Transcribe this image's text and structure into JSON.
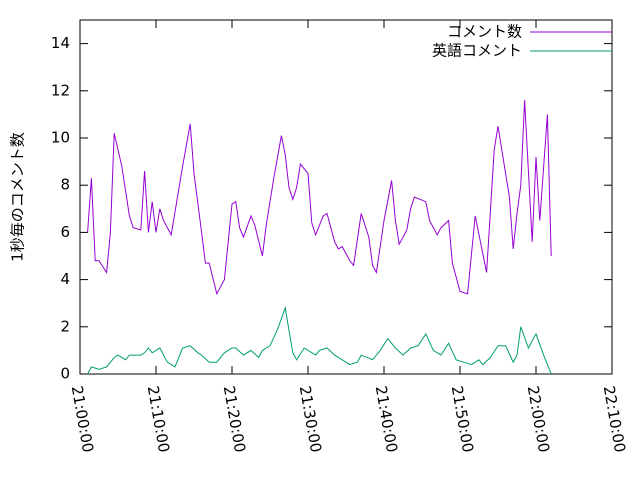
{
  "chart_data": {
    "type": "line",
    "ylabel": "1秒毎のコメント数",
    "xlim": [
      "21:00:00",
      "22:10:00"
    ],
    "xticks": [
      "21:00:00",
      "21:10:00",
      "21:20:00",
      "21:30:00",
      "21:40:00",
      "21:50:00",
      "22:00:00",
      "22:10:00"
    ],
    "ylim": [
      0,
      15
    ],
    "yticks": [
      0,
      2,
      4,
      6,
      8,
      10,
      12,
      14
    ],
    "grid": false,
    "legend": "top-right",
    "series": [
      {
        "name": "コメント数",
        "color": "#9400d3",
        "x": [
          "21:01:00",
          "21:01:30",
          "21:02:00",
          "21:02:30",
          "21:03:30",
          "21:04:00",
          "21:04:30",
          "21:05:30",
          "21:06:30",
          "21:07:00",
          "21:08:00",
          "21:08:30",
          "21:09:00",
          "21:09:30",
          "21:10:00",
          "21:10:30",
          "21:11:00",
          "21:12:00",
          "21:13:30",
          "21:14:30",
          "21:15:00",
          "21:16:00",
          "21:16:30",
          "21:17:00",
          "21:18:00",
          "21:19:00",
          "21:20:00",
          "21:20:30",
          "21:21:00",
          "21:21:30",
          "21:22:30",
          "21:23:00",
          "21:24:00",
          "21:24:30",
          "21:25:30",
          "21:26:30",
          "21:27:00",
          "21:27:30",
          "21:28:00",
          "21:28:30",
          "21:29:00",
          "21:30:00",
          "21:30:30",
          "21:31:00",
          "21:32:00",
          "21:32:30",
          "21:33:30",
          "21:34:00",
          "21:34:30",
          "21:35:30",
          "21:36:00",
          "21:37:00",
          "21:38:00",
          "21:38:30",
          "21:39:00",
          "21:40:00",
          "21:41:00",
          "21:41:30",
          "21:42:00",
          "21:43:00",
          "21:43:30",
          "21:44:00",
          "21:45:30",
          "21:46:00",
          "21:47:00",
          "21:47:30",
          "21:48:30",
          "21:49:00",
          "21:50:00",
          "21:51:00",
          "21:52:00",
          "21:53:00",
          "21:53:30",
          "21:54:30",
          "21:55:00",
          "21:56:00",
          "21:56:30",
          "21:57:00",
          "21:57:30",
          "21:58:00",
          "21:58:30",
          "21:59:30",
          "22:00:00",
          "22:00:30",
          "22:01:30",
          "22:02:00"
        ],
        "values": [
          6.0,
          8.3,
          4.8,
          4.8,
          4.3,
          6.0,
          10.2,
          8.8,
          6.7,
          6.2,
          6.1,
          8.6,
          6.0,
          7.3,
          6.0,
          7.0,
          6.5,
          5.9,
          8.8,
          10.6,
          8.5,
          6.0,
          4.7,
          4.7,
          3.4,
          4.0,
          7.2,
          7.3,
          6.2,
          5.8,
          6.7,
          6.3,
          5.0,
          6.3,
          8.3,
          10.1,
          9.3,
          7.9,
          7.4,
          7.9,
          8.9,
          8.5,
          6.4,
          5.9,
          6.7,
          6.8,
          5.6,
          5.3,
          5.4,
          4.8,
          4.6,
          6.8,
          5.8,
          4.6,
          4.3,
          6.5,
          8.2,
          6.5,
          5.5,
          6.1,
          7.0,
          7.5,
          7.3,
          6.5,
          5.9,
          6.2,
          6.5,
          4.7,
          3.5,
          3.4,
          6.7,
          5.1,
          4.3,
          9.5,
          10.5,
          8.5,
          7.5,
          5.3,
          6.8,
          8.0,
          11.6,
          5.6,
          9.2,
          6.5,
          11.0,
          5.0
        ]
      },
      {
        "name": "英語コメント",
        "color": "#009e73",
        "x": [
          "21:01:00",
          "21:01:30",
          "21:02:30",
          "21:03:30",
          "21:04:30",
          "21:05:00",
          "21:06:00",
          "21:06:30",
          "21:08:00",
          "21:08:30",
          "21:09:00",
          "21:09:30",
          "21:10:30",
          "21:11:30",
          "21:12:30",
          "21:13:30",
          "21:14:30",
          "21:15:30",
          "21:16:00",
          "21:17:00",
          "21:18:00",
          "21:19:00",
          "21:20:00",
          "21:20:30",
          "21:21:30",
          "21:22:30",
          "21:23:30",
          "21:24:00",
          "21:25:00",
          "21:26:00",
          "21:27:00",
          "21:28:00",
          "21:28:30",
          "21:29:30",
          "21:31:00",
          "21:31:30",
          "21:32:30",
          "21:33:30",
          "21:34:30",
          "21:35:30",
          "21:36:30",
          "21:37:00",
          "21:38:30",
          "21:39:30",
          "21:40:30",
          "21:41:30",
          "21:42:30",
          "21:43:30",
          "21:44:30",
          "21:45:30",
          "21:46:30",
          "21:47:30",
          "21:48:30",
          "21:49:30",
          "21:50:30",
          "21:51:30",
          "21:52:30",
          "21:53:00",
          "21:54:00",
          "21:55:00",
          "21:56:00",
          "21:57:00",
          "21:57:30",
          "21:58:00",
          "21:59:00",
          "22:00:00",
          "22:01:00",
          "22:02:00"
        ],
        "values": [
          0.0,
          0.3,
          0.2,
          0.3,
          0.7,
          0.8,
          0.6,
          0.8,
          0.8,
          0.9,
          1.1,
          0.9,
          1.1,
          0.5,
          0.3,
          1.1,
          1.2,
          0.9,
          0.8,
          0.5,
          0.5,
          0.9,
          1.1,
          1.1,
          0.8,
          1.0,
          0.7,
          1.0,
          1.2,
          1.9,
          2.8,
          0.9,
          0.6,
          1.1,
          0.8,
          1.0,
          1.1,
          0.8,
          0.6,
          0.4,
          0.5,
          0.8,
          0.6,
          1.0,
          1.5,
          1.1,
          0.8,
          1.1,
          1.2,
          1.7,
          1.0,
          0.8,
          1.3,
          0.6,
          0.5,
          0.4,
          0.6,
          0.4,
          0.7,
          1.2,
          1.2,
          0.5,
          0.8,
          2.0,
          1.1,
          1.7,
          0.8,
          0.0
        ]
      }
    ]
  }
}
